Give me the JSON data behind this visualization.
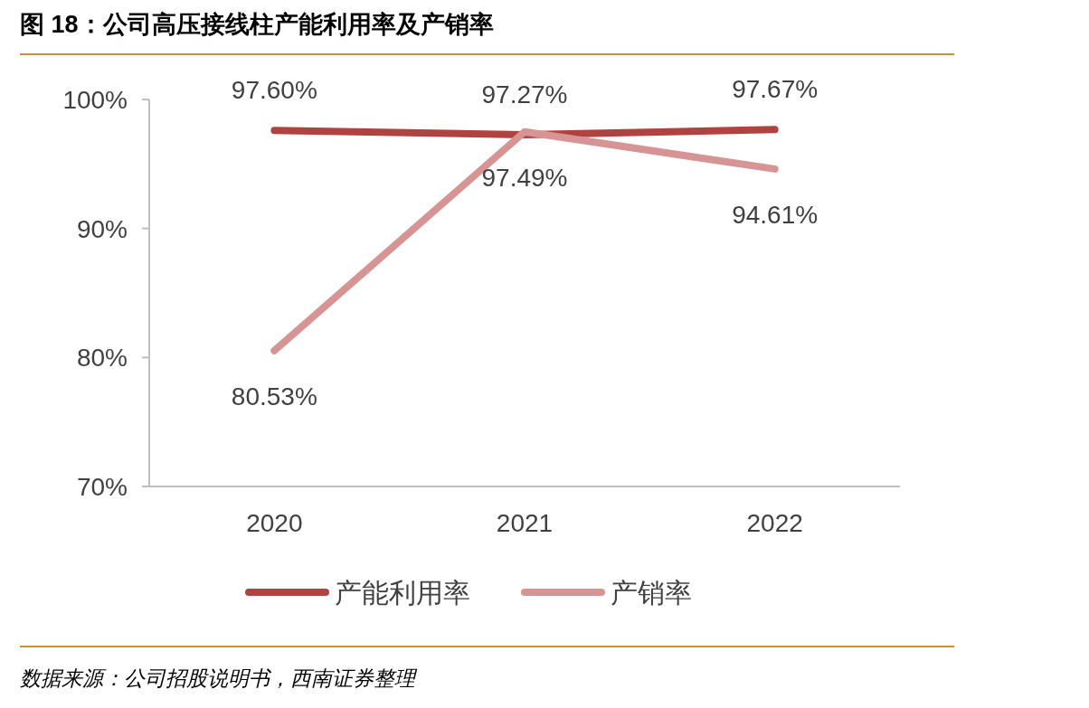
{
  "chart_data": {
    "type": "line",
    "title": "图 18：公司高压接线柱产能利用率及产销率",
    "annotations": [
      "数据来源：公司招股说明书，西南证券整理"
    ],
    "categories": [
      "2020",
      "2021",
      "2022"
    ],
    "series": [
      {
        "name": "产能利用率",
        "color": "#b0433f",
        "values": [
          97.6,
          97.27,
          97.67
        ],
        "value_labels": [
          "97.60%",
          "97.27%",
          "97.67%"
        ]
      },
      {
        "name": "产销率",
        "color": "#d69594",
        "values": [
          80.53,
          97.49,
          94.61
        ],
        "value_labels": [
          "80.53%",
          "97.49%",
          "94.61%"
        ]
      }
    ],
    "ylim": [
      70,
      100
    ],
    "yticks": [
      {
        "value": 70,
        "label": "70%"
      },
      {
        "value": 80,
        "label": "80%"
      },
      {
        "value": 90,
        "label": "90%"
      },
      {
        "value": 100,
        "label": "100%"
      }
    ],
    "grid": false,
    "legend": "bottom",
    "marker": "none",
    "line_style": "solid"
  }
}
